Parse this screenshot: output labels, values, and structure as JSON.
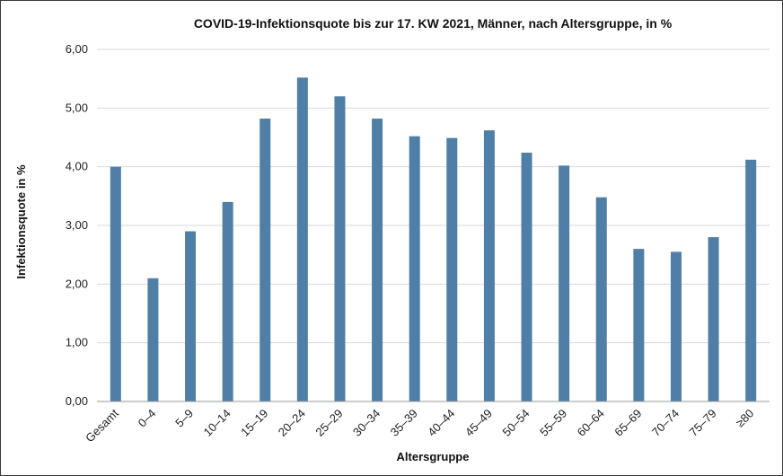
{
  "chart_data": {
    "type": "bar",
    "title": "COVID-19-Infektionsquote bis zur 17. KW 2021, Männer, nach Altersgruppe, in %",
    "xlabel": "Altersgruppe",
    "ylabel": "Infektionsquote in %",
    "ylim": [
      0,
      6
    ],
    "yticks": [
      "0,00",
      "1,00",
      "2,00",
      "3,00",
      "4,00",
      "5,00",
      "6,00"
    ],
    "grid": true,
    "bar_color": "#4f7ea6",
    "categories": [
      "Gesamt",
      "0–4",
      "5–9",
      "10–14",
      "15–19",
      "20–24",
      "25–29",
      "30–34",
      "35–39",
      "40–44",
      "45–49",
      "50–54",
      "55–59",
      "60–64",
      "65–69",
      "70–74",
      "75–79",
      "≥80"
    ],
    "values": [
      4.0,
      2.1,
      2.9,
      3.4,
      4.82,
      5.52,
      5.2,
      4.82,
      4.52,
      4.49,
      4.62,
      4.24,
      4.02,
      3.48,
      2.6,
      2.55,
      2.8,
      4.12
    ]
  }
}
